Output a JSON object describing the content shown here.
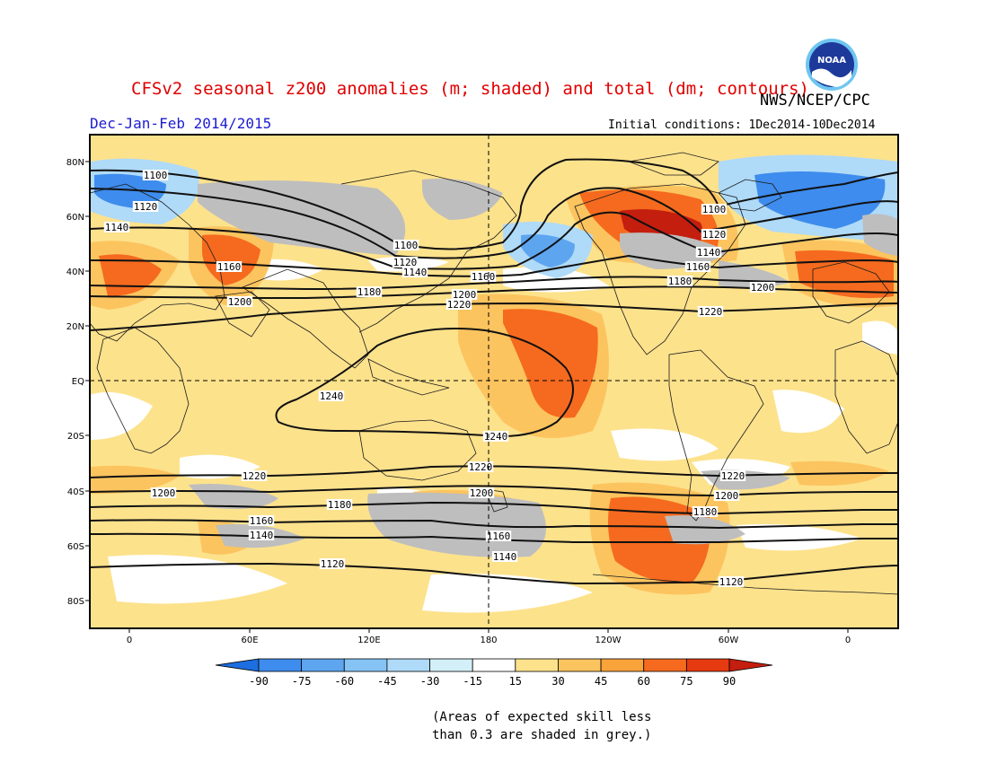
{
  "title": "CFSv2 seasonal z200 anomalies (m; shaded) and total (dm; contours)",
  "agency": "NWS/NCEP/CPC",
  "season": "Dec-Jan-Feb 2014/2015",
  "initial_conditions": "Initial conditions: 1Dec2014-10Dec2014",
  "logo_text": "NOAA",
  "skill_note_line1": "(Areas of expected skill less",
  "skill_note_line2": "than 0.3 are shaded in grey.)",
  "lat_labels": [
    "80N",
    "60N",
    "40N",
    "20N",
    "EQ",
    "20S",
    "40S",
    "60S",
    "80S"
  ],
  "lon_labels": [
    "0",
    "60E",
    "120E",
    "180",
    "120W",
    "60W",
    "0"
  ],
  "colorbar": {
    "labels": [
      "-90",
      "-75",
      "-60",
      "-45",
      "-30",
      "-15",
      "15",
      "30",
      "45",
      "60",
      "75",
      "90"
    ],
    "colors": [
      "#1d6ee0",
      "#3e8ced",
      "#5ea5f0",
      "#86c3f5",
      "#afdaf8",
      "#d3f0f8",
      "#ffffff",
      "#fde28c",
      "#fcc45f",
      "#f9a33b",
      "#f56a1e",
      "#e63a10",
      "#c41e0e"
    ]
  },
  "colors": {
    "land_outline": "#1a1a1a",
    "skill_grey": "#bebebe",
    "contour": "#111111"
  },
  "contour_labels": [
    "1100",
    "1120",
    "1140",
    "1160",
    "1180",
    "1200",
    "1220",
    "1240"
  ]
}
